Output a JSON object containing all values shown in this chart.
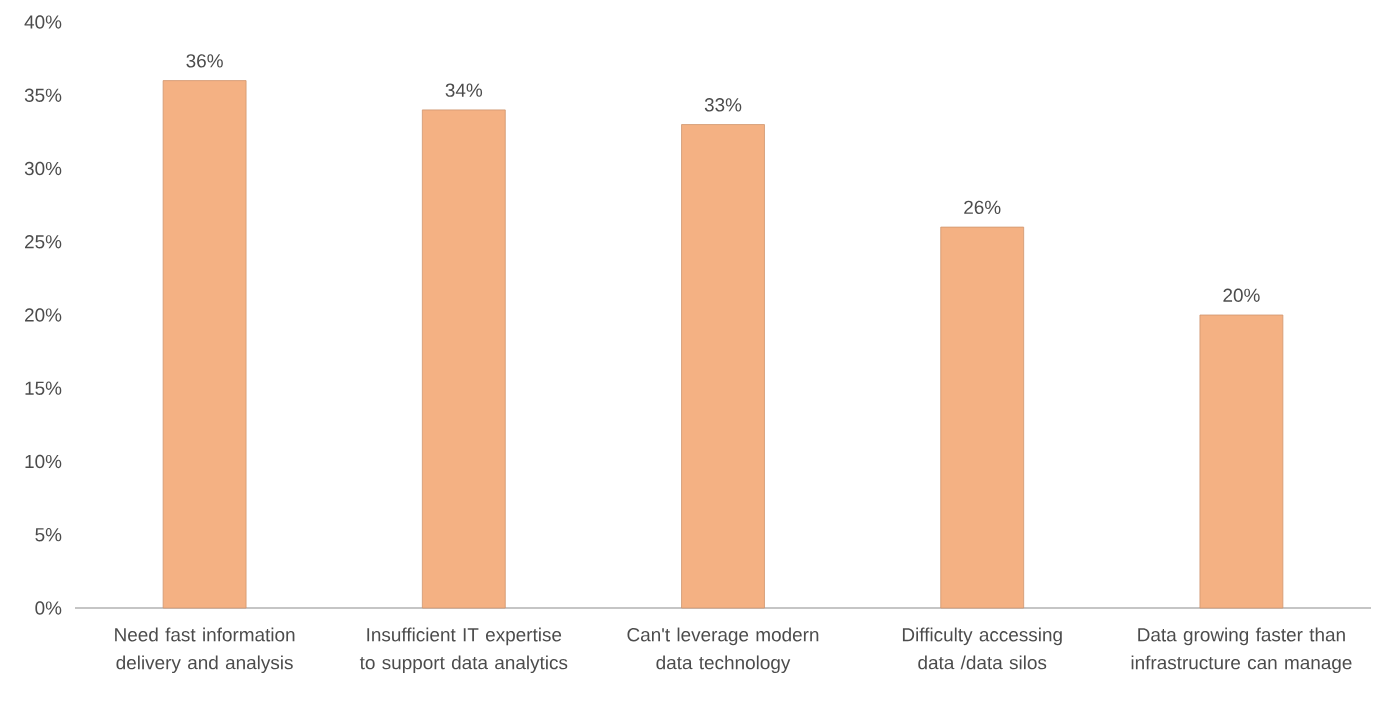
{
  "chart_data": {
    "type": "bar",
    "categories": [
      "Need fast information delivery and analysis",
      "Insufficient IT expertise to support data analytics",
      "Can't leverage modern data technology",
      "Difficulty accessing data /data silos",
      "Data growing faster than infrastructure can manage"
    ],
    "values": [
      36,
      34,
      33,
      26,
      20
    ],
    "value_labels": [
      "36%",
      "34%",
      "33%",
      "26%",
      "20%"
    ],
    "color": "#f4b183",
    "ylim": [
      0,
      40
    ],
    "yticks": [
      {
        "value": 0,
        "label": "0%"
      },
      {
        "value": 5,
        "label": "5%"
      },
      {
        "value": 10,
        "label": "10%"
      },
      {
        "value": 15,
        "label": "15%"
      },
      {
        "value": 20,
        "label": "20%"
      },
      {
        "value": 25,
        "label": "25%"
      },
      {
        "value": 30,
        "label": "30%"
      },
      {
        "value": 35,
        "label": "35%"
      },
      {
        "value": 40,
        "label": "40%"
      }
    ]
  }
}
